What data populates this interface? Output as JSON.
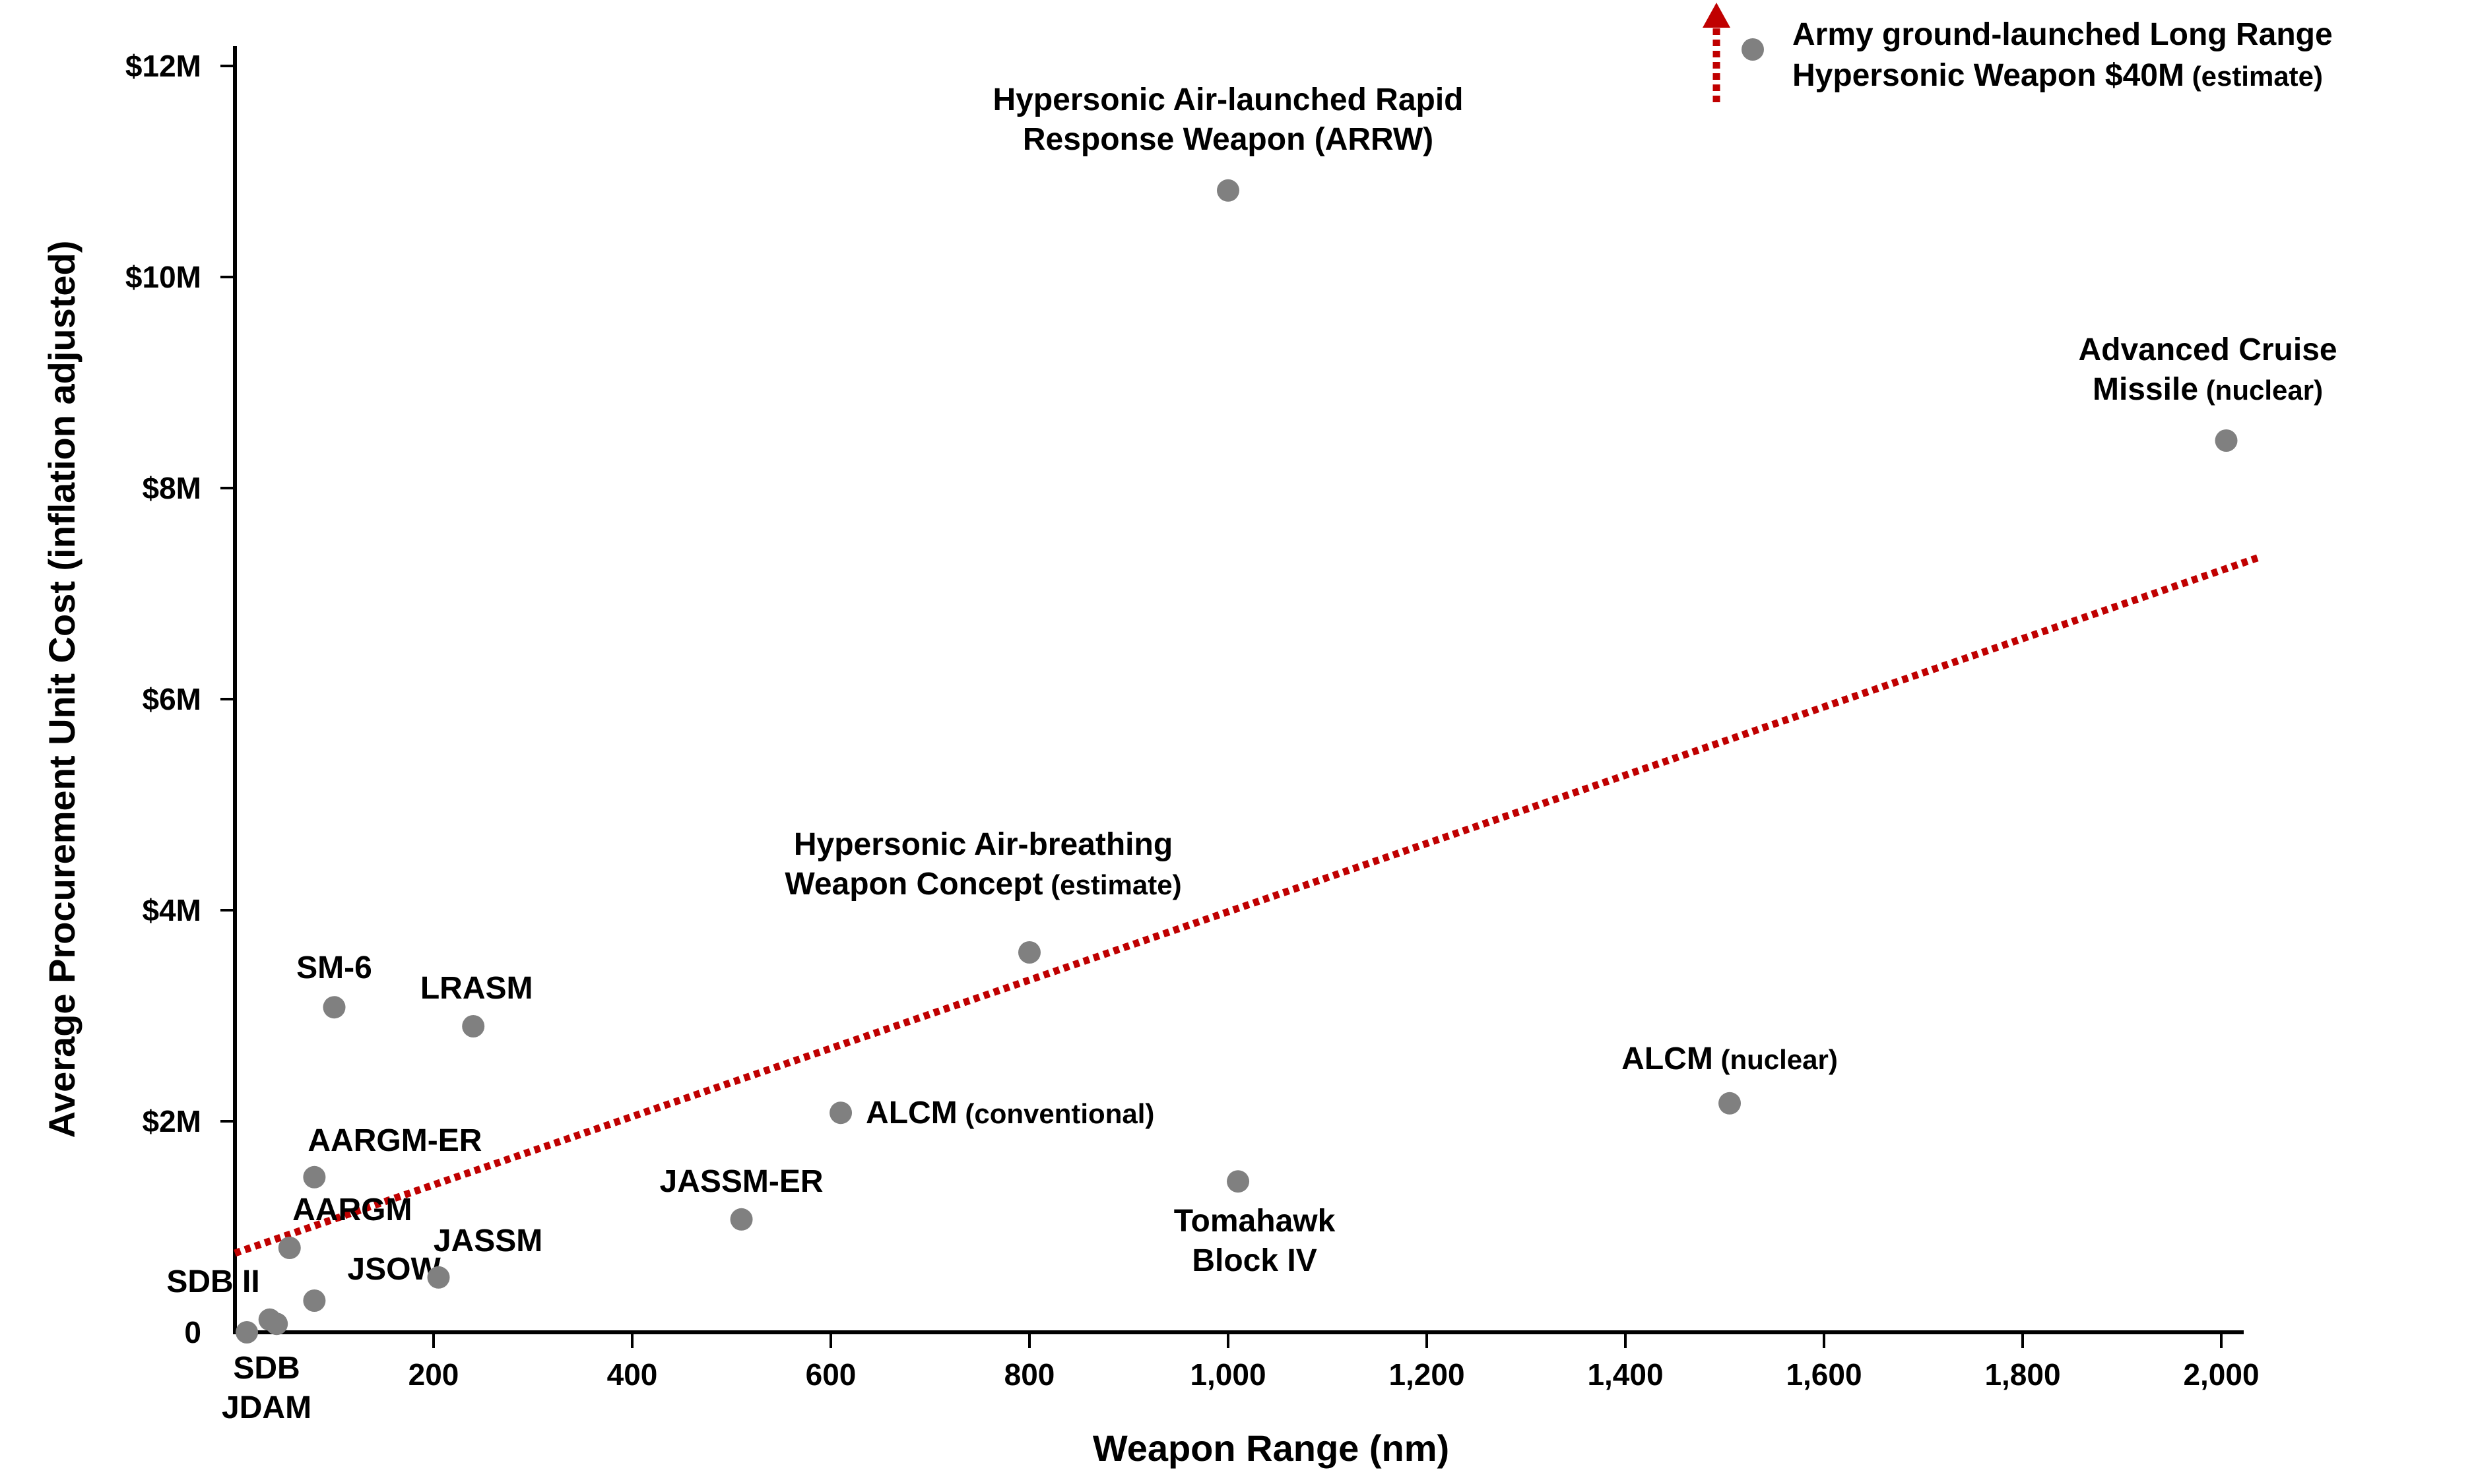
{
  "chart_data": {
    "type": "scatter",
    "title": "",
    "xlabel": "Weapon Range (nm)",
    "ylabel": "Average Procurement Unit Cost (inflation adjusted)",
    "xlim": [
      0,
      2000
    ],
    "ylim": [
      0,
      12
    ],
    "x_ticks": [
      {
        "value": 200,
        "label": "200"
      },
      {
        "value": 400,
        "label": "400"
      },
      {
        "value": 600,
        "label": "600"
      },
      {
        "value": 800,
        "label": "800"
      },
      {
        "value": 1000,
        "label": "1,000"
      },
      {
        "value": 1200,
        "label": "1,200"
      },
      {
        "value": 1400,
        "label": "1,400"
      },
      {
        "value": 1600,
        "label": "1,600"
      },
      {
        "value": 1800,
        "label": "1,800"
      },
      {
        "value": 2000,
        "label": "2,000"
      }
    ],
    "y_ticks": [
      {
        "value": 0,
        "label": "0"
      },
      {
        "value": 2,
        "label": "$2M"
      },
      {
        "value": 4,
        "label": "$4M"
      },
      {
        "value": 6,
        "label": "$6M"
      },
      {
        "value": 8,
        "label": "$8M"
      },
      {
        "value": 10,
        "label": "$10M"
      },
      {
        "value": 12,
        "label": "$12M"
      }
    ],
    "grid": false,
    "marker_color": "#808080",
    "trendline": {
      "color": "#c00000",
      "style": "dotted",
      "x": [
        0,
        2040
      ],
      "y": [
        0.75,
        7.35
      ]
    },
    "offscale_point": {
      "lines": [
        {
          "text": "Army ground-launched Long Range",
          "note": ""
        },
        {
          "text": "Hypersonic Weapon $40M",
          "note": "(estimate)"
        }
      ],
      "y_value": 40,
      "arrow_color": "#c00000"
    },
    "points": [
      {
        "x": 12,
        "y": 0.0,
        "lines": [
          {
            "text": "SDB",
            "note": ""
          },
          {
            "text": "JDAM",
            "note": ""
          }
        ]
      },
      {
        "x": 35,
        "y": 0.12,
        "lines": [
          {
            "text": "SDB II",
            "note": ""
          }
        ]
      },
      {
        "x": 42,
        "y": 0.08,
        "lines": []
      },
      {
        "x": 55,
        "y": 0.8,
        "lines": [
          {
            "text": "AARGM",
            "note": ""
          }
        ]
      },
      {
        "x": 80,
        "y": 0.3,
        "lines": [
          {
            "text": "JSOW",
            "note": ""
          }
        ]
      },
      {
        "x": 80,
        "y": 1.47,
        "lines": [
          {
            "text": "AARGM-ER",
            "note": ""
          }
        ]
      },
      {
        "x": 100,
        "y": 3.08,
        "lines": [
          {
            "text": "SM-6",
            "note": ""
          }
        ]
      },
      {
        "x": 205,
        "y": 0.52,
        "lines": [
          {
            "text": "JASSM",
            "note": ""
          }
        ]
      },
      {
        "x": 240,
        "y": 2.9,
        "lines": [
          {
            "text": "LRASM",
            "note": ""
          }
        ]
      },
      {
        "x": 510,
        "y": 1.07,
        "lines": [
          {
            "text": "JASSM-ER",
            "note": ""
          }
        ]
      },
      {
        "x": 610,
        "y": 2.08,
        "lines": [
          {
            "text": "ALCM",
            "note": "(conventional)"
          }
        ]
      },
      {
        "x": 800,
        "y": 3.6,
        "lines": [
          {
            "text": "Hypersonic Air-breathing",
            "note": ""
          },
          {
            "text": "Weapon Concept",
            "note": "(estimate)"
          }
        ]
      },
      {
        "x": 1000,
        "y": 10.82,
        "lines": [
          {
            "text": "Hypersonic Air-launched Rapid",
            "note": ""
          },
          {
            "text": "Response Weapon (ARRW)",
            "note": ""
          }
        ]
      },
      {
        "x": 1010,
        "y": 1.43,
        "lines": [
          {
            "text": "Tomahawk",
            "note": ""
          },
          {
            "text": "Block IV",
            "note": ""
          }
        ]
      },
      {
        "x": 1505,
        "y": 2.17,
        "lines": [
          {
            "text": "ALCM",
            "note": "(nuclear)"
          }
        ]
      },
      {
        "x": 2005,
        "y": 8.45,
        "lines": [
          {
            "text": "Advanced Cruise",
            "note": ""
          },
          {
            "text": "Missile",
            "note": "(nuclear)"
          }
        ]
      }
    ]
  }
}
